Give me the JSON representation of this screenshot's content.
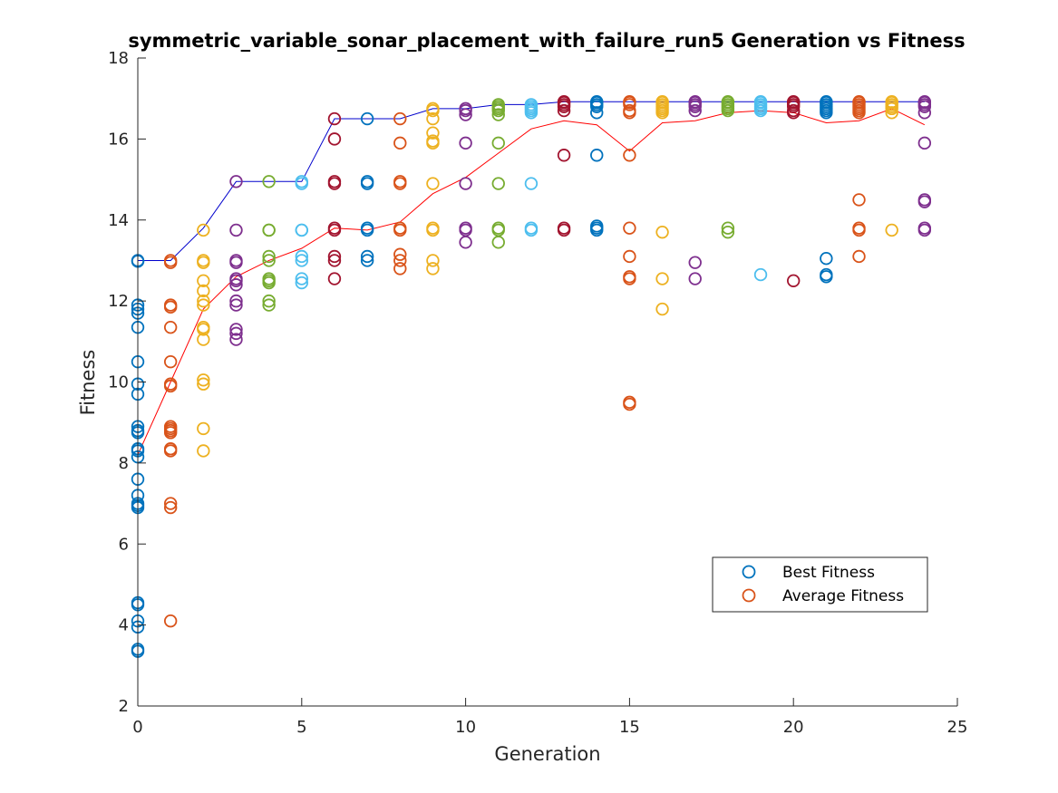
{
  "chart_data": {
    "type": "scatter",
    "title": "symmetric_variable_sonar_placement_with_failure_run5 Generation vs Fitness",
    "xlabel": "Generation",
    "ylabel": "Fitness",
    "xlim": [
      0,
      25
    ],
    "ylim": [
      2,
      18
    ],
    "xticks": [
      0,
      5,
      10,
      15,
      20,
      25
    ],
    "yticks": [
      2,
      4,
      6,
      8,
      10,
      12,
      14,
      16,
      18
    ],
    "grid": false,
    "legend_position": "bottom-right",
    "legend": [
      {
        "label": "Best Fitness",
        "color": "#0072BD"
      },
      {
        "label": "Average Fitness",
        "color": "#D95319"
      }
    ],
    "best_fitness_line": {
      "color": "#0000CC",
      "x": [
        0,
        1,
        2,
        3,
        4,
        5,
        6,
        7,
        8,
        9,
        10,
        11,
        12,
        13,
        14,
        15,
        16,
        17,
        18,
        19,
        20,
        21,
        22,
        23,
        24
      ],
      "y": [
        13.0,
        13.0,
        13.8,
        14.95,
        14.95,
        14.95,
        16.5,
        16.5,
        16.5,
        16.75,
        16.75,
        16.85,
        16.85,
        16.92,
        16.92,
        16.92,
        16.92,
        16.92,
        16.92,
        16.92,
        16.92,
        16.92,
        16.92,
        16.92,
        16.92
      ]
    },
    "average_fitness_line": {
      "color": "#FF0000",
      "x": [
        0,
        1,
        2,
        3,
        4,
        5,
        6,
        7,
        8,
        9,
        10,
        11,
        12,
        13,
        14,
        15,
        16,
        17,
        18,
        19,
        20,
        21,
        22,
        23,
        24
      ],
      "y": [
        8.2,
        10.0,
        11.8,
        12.6,
        13.0,
        13.3,
        13.8,
        13.75,
        13.95,
        14.65,
        15.05,
        15.65,
        16.25,
        16.45,
        16.35,
        15.7,
        16.4,
        16.45,
        16.65,
        16.7,
        16.65,
        16.4,
        16.45,
        16.75,
        16.35
      ]
    },
    "generations": [
      {
        "x": 0,
        "color": "#0072BD",
        "y": [
          13.0,
          12.98,
          11.9,
          11.8,
          11.7,
          11.35,
          10.5,
          9.95,
          9.7,
          8.9,
          8.8,
          8.75,
          8.35,
          8.3,
          8.15,
          7.6,
          7.2,
          7.0,
          6.95,
          6.9,
          4.55,
          4.5,
          4.1,
          3.95,
          3.4,
          3.35
        ]
      },
      {
        "x": 1,
        "color": "#D95319",
        "y": [
          13.0,
          12.95,
          11.9,
          11.85,
          11.35,
          10.5,
          9.95,
          9.9,
          8.9,
          8.85,
          8.8,
          8.75,
          8.35,
          8.3,
          7.0,
          6.9,
          4.1
        ]
      },
      {
        "x": 2,
        "color": "#EDB120",
        "y": [
          13.75,
          13.0,
          12.95,
          12.5,
          12.25,
          12.0,
          11.9,
          11.35,
          11.3,
          11.05,
          10.05,
          9.95,
          8.85,
          8.3
        ]
      },
      {
        "x": 3,
        "color": "#7E2F8E",
        "y": [
          14.95,
          13.75,
          13.0,
          12.95,
          12.55,
          12.5,
          12.4,
          12.0,
          11.9,
          11.3,
          11.2,
          11.05
        ]
      },
      {
        "x": 4,
        "color": "#77AC30",
        "y": [
          14.95,
          13.75,
          13.75,
          13.1,
          13.0,
          12.55,
          12.5,
          12.45,
          12.0,
          11.9
        ]
      },
      {
        "x": 5,
        "color": "#4DBEEE",
        "y": [
          14.95,
          14.9,
          13.75,
          13.75,
          13.1,
          13.0,
          12.55,
          12.45
        ]
      },
      {
        "x": 6,
        "color": "#A2142F",
        "y": [
          16.5,
          16.0,
          14.95,
          14.9,
          13.8,
          13.75,
          13.1,
          13.0,
          12.55
        ]
      },
      {
        "x": 7,
        "color": "#0072BD",
        "y": [
          16.5,
          14.95,
          14.9,
          13.8,
          13.75,
          13.1,
          13.0
        ]
      },
      {
        "x": 8,
        "color": "#D95319",
        "y": [
          16.5,
          15.9,
          14.95,
          14.9,
          13.8,
          13.75,
          13.15,
          13.0,
          12.8
        ]
      },
      {
        "x": 9,
        "color": "#EDB120",
        "y": [
          16.75,
          16.7,
          16.5,
          16.15,
          15.95,
          15.9,
          14.9,
          13.8,
          13.75,
          13.0,
          12.8
        ]
      },
      {
        "x": 10,
        "color": "#7E2F8E",
        "y": [
          16.75,
          16.7,
          16.6,
          15.9,
          14.9,
          13.8,
          13.75,
          13.45
        ]
      },
      {
        "x": 11,
        "color": "#77AC30",
        "y": [
          16.85,
          16.8,
          16.75,
          16.7,
          16.6,
          15.9,
          14.9,
          13.8,
          13.75,
          13.45
        ]
      },
      {
        "x": 12,
        "color": "#4DBEEE",
        "y": [
          16.85,
          16.8,
          16.75,
          16.7,
          16.65,
          14.9,
          13.8,
          13.75
        ]
      },
      {
        "x": 13,
        "color": "#A2142F",
        "y": [
          16.92,
          16.9,
          16.85,
          16.8,
          16.7,
          15.6,
          13.8,
          13.75
        ]
      },
      {
        "x": 14,
        "color": "#0072BD",
        "y": [
          16.92,
          16.9,
          16.85,
          16.8,
          16.65,
          15.6,
          13.85,
          13.8,
          13.75
        ]
      },
      {
        "x": 15,
        "color": "#D95319",
        "y": [
          16.92,
          16.9,
          16.85,
          16.7,
          16.65,
          15.6,
          13.8,
          13.1,
          12.6,
          12.55,
          9.5,
          9.45
        ]
      },
      {
        "x": 16,
        "color": "#EDB120",
        "y": [
          16.92,
          16.9,
          16.85,
          16.8,
          16.75,
          16.7,
          16.65,
          13.7,
          12.55,
          11.8
        ]
      },
      {
        "x": 17,
        "color": "#7E2F8E",
        "y": [
          16.92,
          16.9,
          16.85,
          16.8,
          16.7,
          12.95,
          12.55
        ]
      },
      {
        "x": 18,
        "color": "#77AC30",
        "y": [
          16.92,
          16.9,
          16.85,
          16.8,
          16.75,
          16.7,
          13.8,
          13.7
        ]
      },
      {
        "x": 19,
        "color": "#4DBEEE",
        "y": [
          16.92,
          16.9,
          16.85,
          16.8,
          16.75,
          16.7,
          12.65
        ]
      },
      {
        "x": 20,
        "color": "#A2142F",
        "y": [
          16.92,
          16.9,
          16.85,
          16.8,
          16.7,
          16.65,
          12.5
        ]
      },
      {
        "x": 21,
        "color": "#0072BD",
        "y": [
          16.92,
          16.9,
          16.85,
          16.8,
          16.75,
          16.7,
          16.65,
          13.05,
          12.65,
          12.6
        ]
      },
      {
        "x": 22,
        "color": "#D95319",
        "y": [
          16.92,
          16.9,
          16.85,
          16.8,
          16.75,
          16.7,
          16.65,
          14.5,
          13.8,
          13.75,
          13.1
        ]
      },
      {
        "x": 23,
        "color": "#EDB120",
        "y": [
          16.92,
          16.9,
          16.85,
          16.8,
          16.75,
          16.65,
          13.75
        ]
      },
      {
        "x": 24,
        "color": "#7E2F8E",
        "y": [
          16.92,
          16.9,
          16.85,
          16.8,
          16.65,
          15.9,
          14.5,
          14.45,
          13.8,
          13.75
        ]
      }
    ]
  }
}
